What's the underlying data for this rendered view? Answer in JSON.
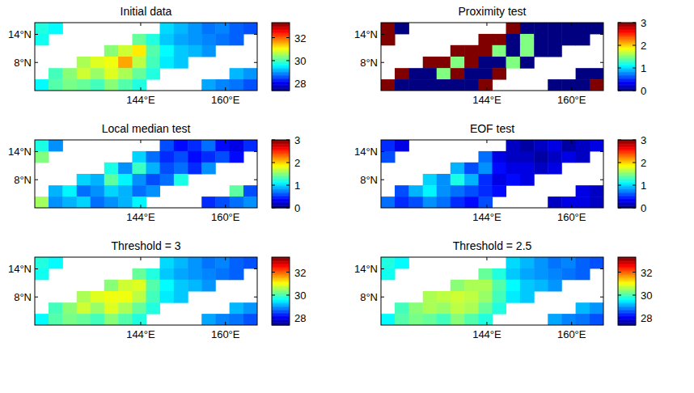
{
  "chart_data": [
    {
      "type": "heatmap",
      "title": "Initial data",
      "x": [
        125.3,
        127.9,
        130.6,
        133.2,
        135.8,
        138.4,
        141.1,
        143.7,
        146.3,
        148.9,
        151.6,
        154.2,
        156.8,
        159.4,
        162.1,
        164.7
      ],
      "y": [
        15.3,
        12.9,
        10.5,
        8.0,
        5.6,
        3.2
      ],
      "values": [
        [
          29.8,
          29.6,
          null,
          null,
          null,
          null,
          null,
          null,
          null,
          29.4,
          29.2,
          29.0,
          28.8,
          28.9,
          28.7,
          28.6
        ],
        [
          29.7,
          null,
          null,
          null,
          null,
          null,
          null,
          30.2,
          29.8,
          29.3,
          29.1,
          29.0,
          28.9,
          28.8,
          28.7,
          null
        ],
        [
          null,
          null,
          null,
          null,
          null,
          30.4,
          30.8,
          31.2,
          30.1,
          29.6,
          29.3,
          29.2,
          29.0,
          null,
          null,
          null
        ],
        [
          null,
          null,
          null,
          30.6,
          30.9,
          31.0,
          31.6,
          30.7,
          30.0,
          29.5,
          29.3,
          null,
          null,
          null,
          null,
          null
        ],
        [
          null,
          30.0,
          30.4,
          30.8,
          30.5,
          30.9,
          30.6,
          30.2,
          29.8,
          null,
          null,
          null,
          null,
          null,
          29.2,
          29.0
        ],
        [
          29.6,
          30.1,
          30.3,
          30.2,
          30.0,
          30.4,
          30.1,
          29.8,
          null,
          null,
          null,
          null,
          29.1,
          28.9,
          28.8,
          28.6
        ]
      ],
      "xlim": [
        124,
        166
      ],
      "ylim": [
        2,
        16.5
      ],
      "xticks": [
        {
          "value": 144,
          "label": "144°E"
        },
        {
          "value": 160,
          "label": "160°E"
        }
      ],
      "yticks": [
        {
          "value": 8,
          "label": "8°N"
        },
        {
          "value": 14,
          "label": "14°N"
        }
      ],
      "clim": [
        27.4,
        33.3
      ],
      "cticks": [
        28,
        30,
        32
      ]
    },
    {
      "type": "heatmap",
      "title": "Proximity test",
      "x": [
        125.3,
        127.9,
        130.6,
        133.2,
        135.8,
        138.4,
        141.1,
        143.7,
        146.3,
        148.9,
        151.6,
        154.2,
        156.8,
        159.4,
        162.1,
        164.7
      ],
      "y": [
        15.3,
        12.9,
        10.5,
        8.0,
        5.6,
        3.2
      ],
      "values": [
        [
          3,
          0,
          null,
          null,
          null,
          null,
          null,
          null,
          null,
          3,
          0,
          0,
          0,
          0,
          0,
          0
        ],
        [
          3,
          null,
          null,
          null,
          null,
          null,
          null,
          3,
          3,
          0,
          1.5,
          0,
          0,
          0,
          0,
          null
        ],
        [
          null,
          null,
          null,
          null,
          null,
          3,
          3,
          3,
          1.5,
          0,
          1.5,
          0,
          0,
          null,
          null,
          null
        ],
        [
          null,
          null,
          null,
          3,
          3,
          1.5,
          3,
          0,
          0,
          1.5,
          0,
          null,
          null,
          null,
          null,
          null
        ],
        [
          null,
          3,
          0,
          0,
          1.5,
          3,
          0,
          0,
          3,
          null,
          null,
          null,
          null,
          null,
          0,
          0
        ],
        [
          3,
          0,
          0,
          0,
          0,
          0,
          0,
          3,
          null,
          null,
          null,
          null,
          0,
          0,
          0,
          3
        ]
      ],
      "xlim": [
        124,
        166
      ],
      "ylim": [
        2,
        16.5
      ],
      "xticks": [
        {
          "value": 144,
          "label": "144°E"
        },
        {
          "value": 160,
          "label": "160°E"
        }
      ],
      "yticks": [
        {
          "value": 8,
          "label": "8°N"
        },
        {
          "value": 14,
          "label": "14°N"
        }
      ],
      "clim": [
        0,
        3
      ],
      "cticks": [
        0,
        1,
        2,
        3
      ]
    },
    {
      "type": "heatmap",
      "title": "Local median test",
      "x": [
        125.3,
        127.9,
        130.6,
        133.2,
        135.8,
        138.4,
        141.1,
        143.7,
        146.3,
        148.9,
        151.6,
        154.2,
        156.8,
        159.4,
        162.1,
        164.7
      ],
      "y": [
        15.3,
        12.9,
        10.5,
        8.0,
        5.6,
        3.2
      ],
      "values": [
        [
          1.2,
          0.8,
          null,
          null,
          null,
          null,
          null,
          null,
          null,
          0.6,
          0.4,
          0.5,
          0.7,
          0.4,
          0.3,
          0.5
        ],
        [
          1.5,
          null,
          null,
          null,
          null,
          null,
          null,
          1.0,
          0.7,
          0.5,
          0.6,
          0.4,
          0.5,
          0.6,
          0.4,
          null
        ],
        [
          null,
          null,
          null,
          null,
          null,
          1.2,
          0.8,
          1.3,
          0.9,
          0.6,
          0.7,
          0.5,
          0.8,
          null,
          null,
          null
        ],
        [
          null,
          null,
          null,
          1.0,
          0.9,
          1.4,
          1.1,
          0.8,
          0.6,
          0.7,
          1.2,
          null,
          null,
          null,
          null,
          null
        ],
        [
          null,
          0.9,
          1.1,
          0.7,
          0.8,
          1.0,
          0.9,
          0.7,
          0.8,
          null,
          null,
          null,
          null,
          null,
          1.4,
          0.6
        ],
        [
          1.6,
          0.8,
          0.9,
          1.0,
          0.7,
          0.8,
          0.9,
          1.1,
          null,
          null,
          null,
          null,
          0.5,
          0.6,
          0.7,
          0.8
        ]
      ],
      "xlim": [
        124,
        166
      ],
      "ylim": [
        2,
        16.5
      ],
      "xticks": [
        {
          "value": 144,
          "label": "144°E"
        },
        {
          "value": 160,
          "label": "160°E"
        }
      ],
      "yticks": [
        {
          "value": 8,
          "label": "8°N"
        },
        {
          "value": 14,
          "label": "14°N"
        }
      ],
      "clim": [
        0,
        3
      ],
      "cticks": [
        0,
        1,
        2,
        3
      ]
    },
    {
      "type": "heatmap",
      "title": "EOF test",
      "x": [
        125.3,
        127.9,
        130.6,
        133.2,
        135.8,
        138.4,
        141.1,
        143.7,
        146.3,
        148.9,
        151.6,
        154.2,
        156.8,
        159.4,
        162.1,
        164.7
      ],
      "y": [
        15.3,
        12.9,
        10.5,
        8.0,
        5.6,
        3.2
      ],
      "values": [
        [
          0.5,
          0.3,
          null,
          null,
          null,
          null,
          null,
          null,
          null,
          0.2,
          0.1,
          0.2,
          0.3,
          0.1,
          0.2,
          0.3
        ],
        [
          0.6,
          null,
          null,
          null,
          null,
          null,
          null,
          0.7,
          0.3,
          0.2,
          0.2,
          0.1,
          0.2,
          0.3,
          0.2,
          null
        ],
        [
          null,
          null,
          null,
          null,
          null,
          0.9,
          0.6,
          0.8,
          0.4,
          0.3,
          0.3,
          0.2,
          0.3,
          null,
          null,
          null
        ],
        [
          null,
          null,
          null,
          1.0,
          0.8,
          1.2,
          0.9,
          0.5,
          0.3,
          0.4,
          0.3,
          null,
          null,
          null,
          null,
          null
        ],
        [
          null,
          0.6,
          0.9,
          1.1,
          0.8,
          0.7,
          0.6,
          0.5,
          0.4,
          null,
          null,
          null,
          null,
          null,
          0.3,
          0.2
        ],
        [
          0.7,
          0.5,
          0.6,
          0.8,
          0.7,
          0.5,
          0.4,
          0.6,
          null,
          null,
          null,
          null,
          0.2,
          0.3,
          0.3,
          0.2
        ]
      ],
      "xlim": [
        124,
        166
      ],
      "ylim": [
        2,
        16.5
      ],
      "xticks": [
        {
          "value": 144,
          "label": "144°E"
        },
        {
          "value": 160,
          "label": "160°E"
        }
      ],
      "yticks": [
        {
          "value": 8,
          "label": "8°N"
        },
        {
          "value": 14,
          "label": "14°N"
        }
      ],
      "clim": [
        0,
        3
      ],
      "cticks": [
        0,
        1,
        2,
        3
      ]
    },
    {
      "type": "heatmap",
      "title": "Threshold = 3",
      "x": [
        125.3,
        127.9,
        130.6,
        133.2,
        135.8,
        138.4,
        141.1,
        143.7,
        146.3,
        148.9,
        151.6,
        154.2,
        156.8,
        159.4,
        162.1,
        164.7
      ],
      "y": [
        15.3,
        12.9,
        10.5,
        8.0,
        5.6,
        3.2
      ],
      "values": [
        [
          29.8,
          29.6,
          null,
          null,
          null,
          null,
          null,
          null,
          null,
          29.4,
          29.2,
          29.0,
          28.8,
          28.9,
          28.7,
          28.6
        ],
        [
          29.7,
          null,
          null,
          null,
          null,
          null,
          null,
          30.2,
          29.8,
          29.3,
          29.1,
          29.0,
          28.9,
          28.8,
          28.7,
          null
        ],
        [
          null,
          null,
          null,
          null,
          null,
          30.4,
          30.8,
          30.9,
          30.1,
          29.6,
          29.3,
          29.2,
          29.0,
          null,
          null,
          null
        ],
        [
          null,
          null,
          null,
          30.6,
          30.9,
          31.0,
          31.0,
          30.7,
          30.0,
          29.5,
          29.3,
          null,
          null,
          null,
          null,
          null
        ],
        [
          null,
          30.0,
          30.4,
          30.8,
          30.5,
          30.9,
          30.6,
          30.2,
          29.8,
          null,
          null,
          null,
          null,
          null,
          29.2,
          29.0
        ],
        [
          29.6,
          30.1,
          30.3,
          30.2,
          30.0,
          30.4,
          30.1,
          29.8,
          null,
          null,
          null,
          null,
          29.1,
          28.9,
          28.8,
          28.6
        ]
      ],
      "xlim": [
        124,
        166
      ],
      "ylim": [
        2,
        16.5
      ],
      "xticks": [
        {
          "value": 144,
          "label": "144°E"
        },
        {
          "value": 160,
          "label": "160°E"
        }
      ],
      "yticks": [
        {
          "value": 8,
          "label": "8°N"
        },
        {
          "value": 14,
          "label": "14°N"
        }
      ],
      "clim": [
        27.4,
        33.3
      ],
      "cticks": [
        28,
        30,
        32
      ]
    },
    {
      "type": "heatmap",
      "title": "Threshold = 2.5",
      "x": [
        125.3,
        127.9,
        130.6,
        133.2,
        135.8,
        138.4,
        141.1,
        143.7,
        146.3,
        148.9,
        151.6,
        154.2,
        156.8,
        159.4,
        162.1,
        164.7
      ],
      "y": [
        15.3,
        12.9,
        10.5,
        8.0,
        5.6,
        3.2
      ],
      "values": [
        [
          29.8,
          29.6,
          null,
          null,
          null,
          null,
          null,
          null,
          null,
          29.4,
          29.2,
          29.0,
          28.8,
          28.9,
          28.7,
          28.6
        ],
        [
          29.7,
          null,
          null,
          null,
          null,
          null,
          null,
          30.2,
          29.8,
          29.3,
          29.1,
          29.0,
          28.9,
          28.8,
          28.7,
          null
        ],
        [
          null,
          null,
          null,
          null,
          null,
          30.4,
          30.6,
          30.6,
          30.1,
          29.6,
          29.3,
          29.2,
          29.0,
          null,
          null,
          null
        ],
        [
          null,
          null,
          null,
          30.6,
          30.7,
          30.8,
          30.7,
          30.5,
          30.0,
          29.5,
          29.3,
          null,
          null,
          null,
          null,
          null
        ],
        [
          null,
          30.0,
          30.4,
          30.6,
          30.5,
          30.7,
          30.6,
          30.2,
          29.8,
          null,
          null,
          null,
          null,
          null,
          29.2,
          29.0
        ],
        [
          29.6,
          30.1,
          30.3,
          30.2,
          30.0,
          30.4,
          30.1,
          29.8,
          null,
          null,
          null,
          null,
          29.1,
          28.9,
          28.8,
          28.6
        ]
      ],
      "xlim": [
        124,
        166
      ],
      "ylim": [
        2,
        16.5
      ],
      "xticks": [
        {
          "value": 144,
          "label": "144°E"
        },
        {
          "value": 160,
          "label": "160°E"
        }
      ],
      "yticks": [
        {
          "value": 8,
          "label": "8°N"
        },
        {
          "value": 14,
          "label": "14°N"
        }
      ],
      "clim": [
        27.4,
        33.3
      ],
      "cticks": [
        28,
        30,
        32
      ]
    }
  ]
}
